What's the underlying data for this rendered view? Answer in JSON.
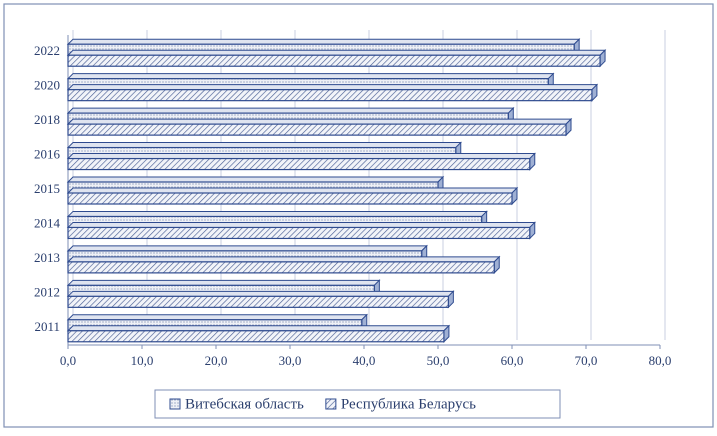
{
  "chart_data": {
    "type": "hbar3d",
    "categories": [
      "2011",
      "2012",
      "2013",
      "2014",
      "2015",
      "2016",
      "2018",
      "2020",
      "2022"
    ],
    "series": [
      {
        "name": "Витебская область",
        "color": "#2f4b8f",
        "values": [
          39.7,
          41.4,
          47.8,
          55.9,
          50.0,
          52.4,
          59.5,
          64.9,
          68.4
        ]
      },
      {
        "name": "Республика Беларусь",
        "color": "#2f4b8f",
        "values": [
          50.8,
          51.4,
          57.6,
          62.4,
          60.0,
          62.4,
          67.3,
          70.8,
          71.9
        ]
      }
    ],
    "xlim": [
      0,
      80
    ],
    "xticks": [
      {
        "value": 0,
        "label": "0,0"
      },
      {
        "value": 10,
        "label": "10,0"
      },
      {
        "value": 20,
        "label": "20,0"
      },
      {
        "value": 30,
        "label": "30,0"
      },
      {
        "value": 40,
        "label": "40,0"
      },
      {
        "value": 50,
        "label": "50,0"
      },
      {
        "value": 60,
        "label": "60,0"
      },
      {
        "value": 70,
        "label": "70,0"
      },
      {
        "value": 80,
        "label": "80,0"
      }
    ],
    "grid": true,
    "legend": "bottom"
  }
}
